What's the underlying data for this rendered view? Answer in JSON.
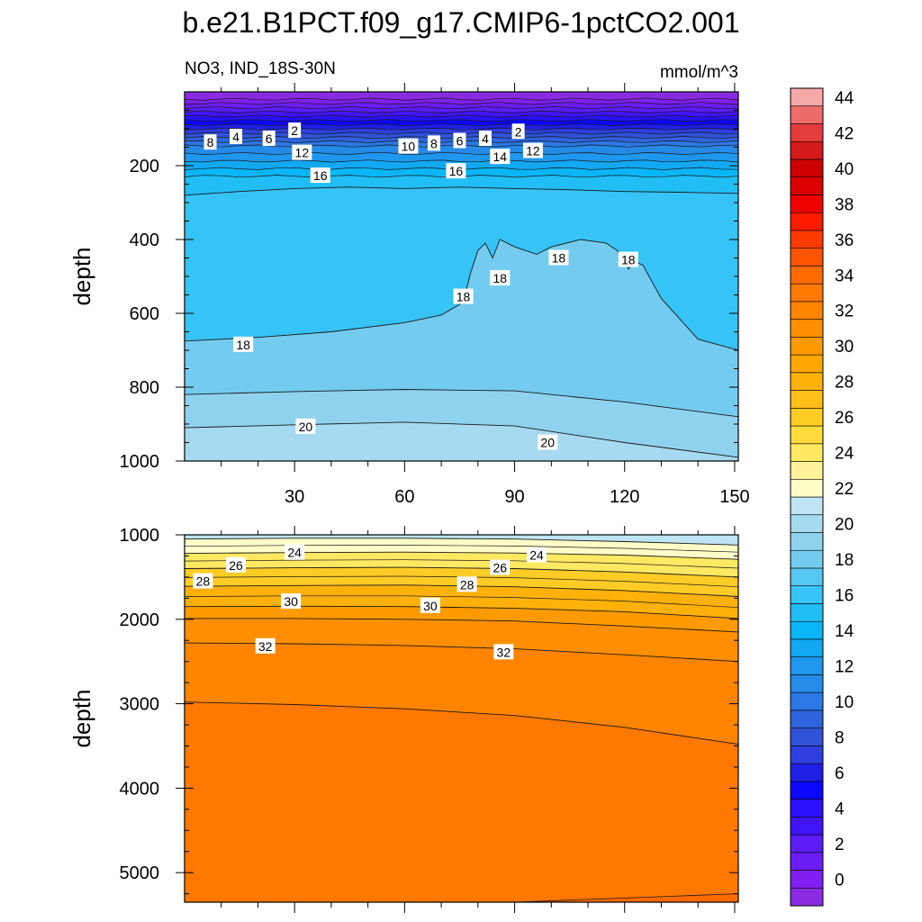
{
  "colors": {
    "levels_fill": [
      "#8a2be2",
      "#7f1ff0",
      "#6a1df5",
      "#5b1cf6",
      "#3f14f8",
      "#2a10fb",
      "#0b06fd",
      "#1f1fe6",
      "#2e3fde",
      "#3052d6",
      "#2d63dc",
      "#2c78e6",
      "#268ae8",
      "#1e97ee",
      "#12a8f2",
      "#0ab6f5",
      "#20bef5",
      "#36c3f5",
      "#55c7f1",
      "#73ccef",
      "#8fd2ee",
      "#a6daf0",
      "#bfe4f3",
      "#fffcc8",
      "#fff29b",
      "#ffe862",
      "#ffdb3b",
      "#ffcc26",
      "#ffbe18",
      "#ffb10b",
      "#ffa600",
      "#ff9a00",
      "#ff8f00",
      "#ff8400",
      "#ff7800",
      "#ff6a00",
      "#ff5500",
      "#ff3a00",
      "#ff1a00",
      "#f00000",
      "#dd0000",
      "#cc0000",
      "#d41a1a",
      "#e43c3c",
      "#ef6a6a",
      "#f7a8a8"
    ]
  },
  "chart_data": {
    "title": "b.e21.B1PCT.f09_g17.CMIP6-1pctCO2.001",
    "variable_label": "NO3, IND_18S-30N",
    "units": "mmol/m^3",
    "type": "contour-heatmap",
    "panels": [
      {
        "id": "upper",
        "ylabel": "depth",
        "xlim": [
          0,
          151
        ],
        "ylim": [
          1000,
          0
        ],
        "xticks": [
          30,
          60,
          90,
          120,
          150
        ],
        "xtick_labels": [
          "30",
          "60",
          "90",
          "120",
          "150"
        ],
        "yticks": [
          200,
          400,
          600,
          800,
          1000
        ],
        "ytick_labels": [
          "200",
          "400",
          "600",
          "800",
          "1000"
        ],
        "contour_lines": [
          {
            "level": 16,
            "x": [
              0,
              15,
              30,
              45,
              60,
              75,
              90,
              105,
              120,
              135,
              151
            ],
            "depth": [
              280,
              270,
              262,
              258,
              262,
              258,
              262,
              265,
              270,
              272,
              275
            ]
          },
          {
            "level": 18,
            "x": [
              0,
              20,
              40,
              60,
              70,
              76,
              78,
              80,
              82,
              84,
              86,
              90,
              96,
              100,
              108,
              115,
              118,
              121,
              123,
              125,
              130,
              140,
              151
            ],
            "depth": [
              675,
              665,
              650,
              625,
              605,
              570,
              490,
              430,
              410,
              450,
              400,
              420,
              440,
              420,
              400,
              410,
              430,
              480,
              460,
              470,
              560,
              670,
              700
            ]
          },
          {
            "level": 19,
            "x": [
              0,
              30,
              60,
              90,
              120,
              151
            ],
            "depth": [
              820,
              812,
              806,
              810,
              840,
              880
            ]
          },
          {
            "level": 20,
            "x": [
              0,
              30,
              60,
              90,
              120,
              151
            ],
            "depth": [
              910,
              902,
              895,
              905,
              950,
              990
            ]
          }
        ],
        "labels": [
          {
            "text": "2",
            "x": 30,
            "depth": 105
          },
          {
            "text": "4",
            "x": 14,
            "depth": 122
          },
          {
            "text": "6",
            "x": 23,
            "depth": 127
          },
          {
            "text": "8",
            "x": 7,
            "depth": 137
          },
          {
            "text": "10",
            "x": 61,
            "depth": 148
          },
          {
            "text": "8",
            "x": 68,
            "depth": 140
          },
          {
            "text": "6",
            "x": 75,
            "depth": 133
          },
          {
            "text": "4",
            "x": 82,
            "depth": 127
          },
          {
            "text": "2",
            "x": 91,
            "depth": 108
          },
          {
            "text": "12",
            "x": 32,
            "depth": 165
          },
          {
            "text": "14",
            "x": 86,
            "depth": 176
          },
          {
            "text": "12",
            "x": 95,
            "depth": 160
          },
          {
            "text": "16",
            "x": 37,
            "depth": 227
          },
          {
            "text": "16",
            "x": 74,
            "depth": 215
          },
          {
            "text": "18",
            "x": 16,
            "depth": 685
          },
          {
            "text": "18",
            "x": 76,
            "depth": 555
          },
          {
            "text": "18",
            "x": 86,
            "depth": 505
          },
          {
            "text": "18",
            "x": 102,
            "depth": 450
          },
          {
            "text": "18",
            "x": 121,
            "depth": 455
          },
          {
            "text": "20",
            "x": 33,
            "depth": 907
          },
          {
            "text": "20",
            "x": 99,
            "depth": 950
          }
        ]
      },
      {
        "id": "lower",
        "ylabel": "depth",
        "xlim": [
          0,
          151
        ],
        "ylim": [
          5350,
          1000
        ],
        "yticks": [
          1000,
          2000,
          3000,
          4000,
          5000
        ],
        "ytick_labels": [
          "1000",
          "2000",
          "3000",
          "4000",
          "5000"
        ],
        "contour_lines": [
          {
            "level": 22,
            "x": [
              0,
              30,
              60,
              90,
              120,
              151
            ],
            "depth": [
              1050,
              1040,
              1040,
              1050,
              1080,
              1120
            ]
          },
          {
            "level": 24,
            "x": [
              0,
              30,
              60,
              90,
              120,
              151
            ],
            "depth": [
              1220,
              1210,
              1205,
              1215,
              1240,
              1290
            ]
          },
          {
            "level": 26,
            "x": [
              0,
              30,
              60,
              90,
              120,
              151
            ],
            "depth": [
              1400,
              1390,
              1385,
              1400,
              1440,
              1500
            ]
          },
          {
            "level": 28,
            "x": [
              0,
              30,
              60,
              90,
              120,
              151
            ],
            "depth": [
              1610,
              1600,
              1595,
              1615,
              1660,
              1730
            ]
          },
          {
            "level": 30,
            "x": [
              0,
              30,
              60,
              90,
              120,
              151
            ],
            "depth": [
              1850,
              1845,
              1850,
              1870,
              1910,
              1990
            ]
          },
          {
            "level": 31,
            "x": [
              0,
              30,
              60,
              90,
              120,
              151
            ],
            "depth": [
              1990,
              1990,
              2000,
              2020,
              2080,
              2150
            ]
          },
          {
            "level": 32,
            "x": [
              0,
              30,
              60,
              90,
              120,
              151
            ],
            "depth": [
              2280,
              2290,
              2310,
              2350,
              2420,
              2500
            ]
          },
          {
            "level": 33,
            "x": [
              0,
              30,
              60,
              90,
              120,
              151
            ],
            "depth": [
              2980,
              3010,
              3060,
              3140,
              3280,
              3480
            ]
          }
        ],
        "labels": [
          {
            "text": "24",
            "x": 30,
            "depth": 1210
          },
          {
            "text": "24",
            "x": 96,
            "depth": 1240
          },
          {
            "text": "26",
            "x": 14,
            "depth": 1360
          },
          {
            "text": "26",
            "x": 86,
            "depth": 1390
          },
          {
            "text": "28",
            "x": 5,
            "depth": 1550
          },
          {
            "text": "28",
            "x": 77,
            "depth": 1590
          },
          {
            "text": "30",
            "x": 29,
            "depth": 1790
          },
          {
            "text": "30",
            "x": 67,
            "depth": 1840
          },
          {
            "text": "32",
            "x": 22,
            "depth": 2320
          },
          {
            "text": "32",
            "x": 87,
            "depth": 2390
          }
        ]
      }
    ],
    "colorbar": {
      "min": -1,
      "max": 45,
      "step": 1,
      "tick_labels": [
        "0",
        "2",
        "4",
        "6",
        "8",
        "10",
        "12",
        "14",
        "16",
        "18",
        "20",
        "22",
        "24",
        "26",
        "28",
        "30",
        "32",
        "34",
        "36",
        "38",
        "40",
        "42",
        "44"
      ],
      "tick_values": [
        0,
        2,
        4,
        6,
        8,
        10,
        12,
        14,
        16,
        18,
        20,
        22,
        24,
        26,
        28,
        30,
        32,
        34,
        36,
        38,
        40,
        42,
        44
      ]
    }
  }
}
